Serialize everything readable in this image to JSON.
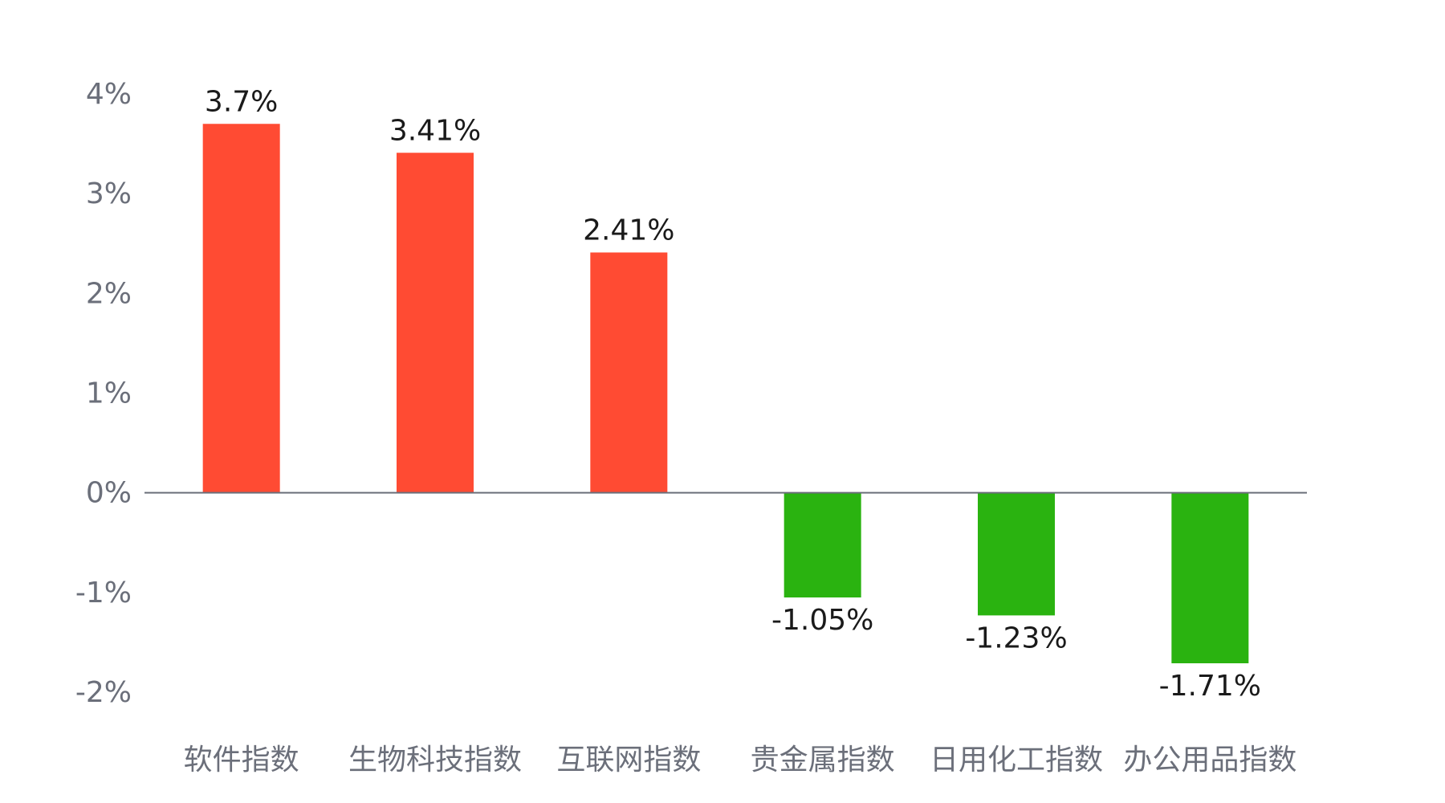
{
  "chart_data": {
    "type": "bar",
    "categories": [
      "软件指数",
      "生物科技指数",
      "互联网指数",
      "贵金属指数",
      "日用化工指数",
      "办公用品指数"
    ],
    "values": [
      3.7,
      3.41,
      2.41,
      -1.05,
      -1.23,
      -1.71
    ],
    "value_labels": [
      "3.7%",
      "3.41%",
      "2.41%",
      "-1.05%",
      "-1.23%",
      "-1.71%"
    ],
    "y_ticks": [
      4,
      3,
      2,
      1,
      0,
      -1,
      -2
    ],
    "y_tick_labels": [
      "4%",
      "3%",
      "2%",
      "1%",
      "0%",
      "-1%",
      "-2%"
    ],
    "ylim": [
      -2,
      4
    ],
    "grid": false,
    "legend": "none",
    "colors": {
      "positive": "#ff4b33",
      "negative": "#2ab310",
      "baseline": "#6b6f7a",
      "tick_text": "#6b6f7a",
      "label_text": "#1a1a1a"
    }
  }
}
